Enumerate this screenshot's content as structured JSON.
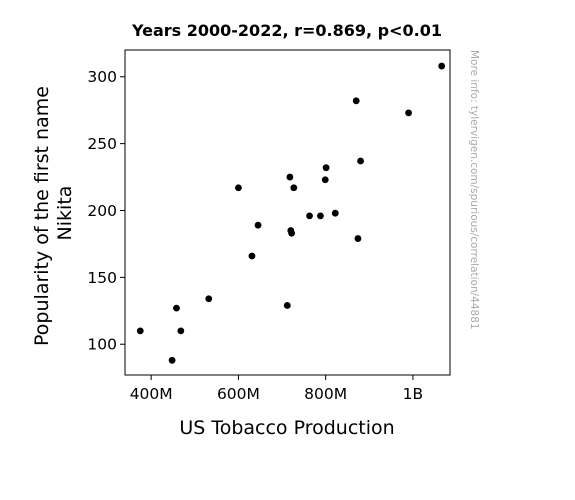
{
  "chart_data": {
    "type": "scatter",
    "title": "Years 2000-2022, r=0.869, p<0.01",
    "xlabel": "US Tobacco Production",
    "ylabel_lines": [
      "Popularity of the first name",
      "Nikita"
    ],
    "xlim": [
      340000000,
      1085000000
    ],
    "ylim": [
      77,
      320
    ],
    "x_ticks": [
      {
        "value": 400000000,
        "label": "400M"
      },
      {
        "value": 600000000,
        "label": "600M"
      },
      {
        "value": 800000000,
        "label": "800M"
      },
      {
        "value": 1000000000,
        "label": "1B"
      }
    ],
    "y_ticks": [
      {
        "value": 100,
        "label": "100"
      },
      {
        "value": 150,
        "label": "150"
      },
      {
        "value": 200,
        "label": "200"
      },
      {
        "value": 250,
        "label": "250"
      },
      {
        "value": 300,
        "label": "300"
      }
    ],
    "grid": false,
    "marker_color": "#000000",
    "points": [
      {
        "x": 375000000,
        "y": 110
      },
      {
        "x": 448000000,
        "y": 88
      },
      {
        "x": 458000000,
        "y": 127
      },
      {
        "x": 468000000,
        "y": 110
      },
      {
        "x": 532000000,
        "y": 134
      },
      {
        "x": 600000000,
        "y": 217
      },
      {
        "x": 631000000,
        "y": 166
      },
      {
        "x": 645000000,
        "y": 189
      },
      {
        "x": 712000000,
        "y": 129
      },
      {
        "x": 718000000,
        "y": 225
      },
      {
        "x": 720000000,
        "y": 185
      },
      {
        "x": 722000000,
        "y": 183
      },
      {
        "x": 727000000,
        "y": 217
      },
      {
        "x": 763000000,
        "y": 196
      },
      {
        "x": 788000000,
        "y": 196
      },
      {
        "x": 799000000,
        "y": 223
      },
      {
        "x": 801000000,
        "y": 232
      },
      {
        "x": 822000000,
        "y": 198
      },
      {
        "x": 870000000,
        "y": 282
      },
      {
        "x": 874000000,
        "y": 179
      },
      {
        "x": 880000000,
        "y": 237
      },
      {
        "x": 990000000,
        "y": 273
      },
      {
        "x": 1066000000,
        "y": 308
      }
    ]
  },
  "watermark": "More info: tylervigen.com/spurious/correlation/44881"
}
